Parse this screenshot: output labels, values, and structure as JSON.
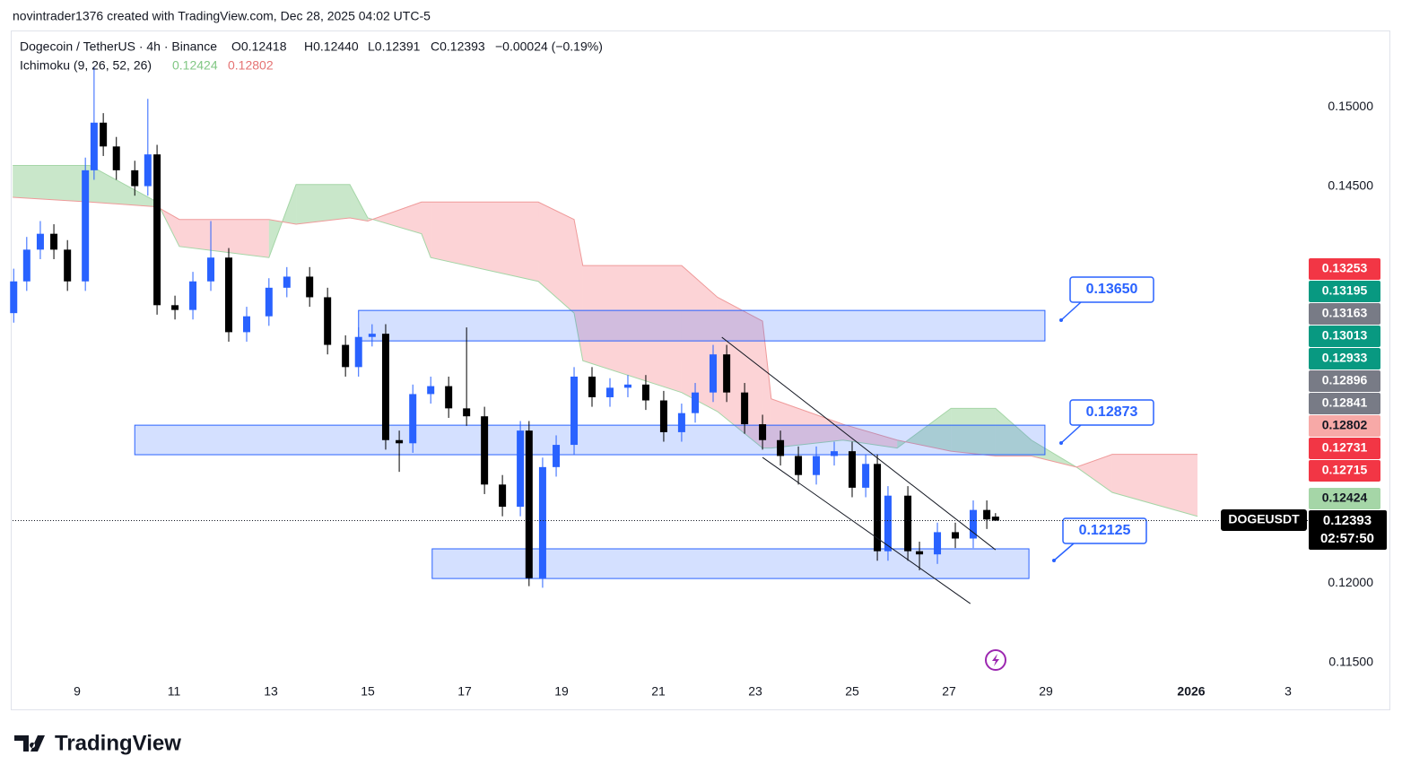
{
  "header": {
    "credit": "novintrader1376 created with TradingView.com, Dec 28, 2025 04:02 UTC-5"
  },
  "legend": {
    "symbol": "Dogecoin / TetherUS · 4h · Binance",
    "open": "O0.12418",
    "high": "H0.12440",
    "low": "L0.12391",
    "close": "C0.12393",
    "change": "−0.00024 (−0.19%)",
    "indicator": "Ichimoku (9, 26, 52, 26)",
    "indicator_a": "0.12424",
    "indicator_b": "0.12802"
  },
  "logo": "TradingView",
  "chart_data": {
    "type": "candlestick",
    "xlim": [
      7.667,
      36.111
    ],
    "ylim": [
      0.11198,
      0.15475
    ],
    "xticks": [
      9,
      11,
      13,
      15,
      17,
      19,
      21,
      23,
      25,
      27,
      29,
      {
        "value": 32,
        "label": "2026"
      },
      {
        "value": 34,
        "label": "3"
      }
    ],
    "yticks": [
      {
        "value": 0.115,
        "label": "0.11500"
      },
      {
        "value": 0.12,
        "label": "0.12000"
      },
      {
        "value": 0.145,
        "label": "0.14500"
      },
      {
        "value": 0.15,
        "label": "0.15000"
      }
    ],
    "up_color": "#2962ff",
    "down_color": "#000000",
    "x": [
      7.69,
      7.96,
      8.24,
      8.52,
      8.8,
      9.17,
      9.35,
      9.54,
      9.81,
      10.19,
      10.46,
      10.65,
      11.02,
      11.39,
      11.76,
      12.13,
      12.5,
      12.96,
      13.33,
      13.8,
      14.17,
      14.54,
      14.81,
      15.09,
      15.37,
      15.65,
      15.93,
      16.3,
      16.67,
      17.04,
      17.41,
      17.78,
      18.15,
      18.33,
      18.61,
      18.89,
      19.26,
      19.63,
      20.0,
      20.37,
      20.74,
      21.11,
      21.48,
      21.76,
      22.13,
      22.41,
      22.78,
      23.15,
      23.52,
      23.89,
      24.26,
      24.63,
      25.0,
      25.28,
      25.52,
      25.74,
      26.15,
      26.39,
      26.76,
      27.13,
      27.5,
      27.78,
      27.96
    ],
    "open": [
      0.137,
      0.139,
      0.141,
      0.142,
      0.141,
      0.139,
      0.146,
      0.149,
      0.1475,
      0.146,
      0.145,
      0.147,
      0.1375,
      0.1372,
      0.139,
      0.1405,
      0.1358,
      0.1368,
      0.1386,
      0.1393,
      0.138,
      0.135,
      0.1336,
      0.1355,
      0.1357,
      0.129,
      0.1288,
      0.1319,
      0.1324,
      0.131,
      0.1305,
      0.1262,
      0.1248,
      0.1296,
      0.1203,
      0.1273,
      0.1287,
      0.133,
      0.1317,
      0.1323,
      0.1325,
      0.1315,
      0.1295,
      0.1307,
      0.132,
      0.1344,
      0.132,
      0.13,
      0.129,
      0.128,
      0.1268,
      0.128,
      0.1283,
      0.126,
      0.1275,
      0.122,
      0.1255,
      0.122,
      0.1218,
      0.1232,
      0.1228,
      0.1246,
      0.12418
    ],
    "high": [
      0.1398,
      0.1418,
      0.1428,
      0.1426,
      0.1416,
      0.1468,
      0.1525,
      0.1496,
      0.1481,
      0.1466,
      0.1505,
      0.1476,
      0.1381,
      0.1396,
      0.1428,
      0.1411,
      0.1374,
      0.1392,
      0.1399,
      0.1399,
      0.1386,
      0.1356,
      0.1361,
      0.1363,
      0.1363,
      0.1296,
      0.1325,
      0.133,
      0.133,
      0.1361,
      0.1311,
      0.1268,
      0.1302,
      0.1302,
      0.1279,
      0.1293,
      0.1336,
      0.1336,
      0.1329,
      0.1331,
      0.1331,
      0.1321,
      0.1313,
      0.1326,
      0.135,
      0.135,
      0.1326,
      0.1306,
      0.1296,
      0.1286,
      0.1286,
      0.1289,
      0.1289,
      0.1281,
      0.1281,
      0.1261,
      0.1261,
      0.1226,
      0.1238,
      0.1238,
      0.1252,
      0.1252,
      0.1244
    ],
    "low": [
      0.1364,
      0.1384,
      0.1404,
      0.1404,
      0.1384,
      0.1384,
      0.1454,
      0.1469,
      0.1454,
      0.1444,
      0.1444,
      0.1369,
      0.1366,
      0.1366,
      0.1384,
      0.1352,
      0.1352,
      0.1362,
      0.138,
      0.1374,
      0.1344,
      0.133,
      0.133,
      0.1349,
      0.1284,
      0.127,
      0.1282,
      0.1313,
      0.1304,
      0.1299,
      0.1256,
      0.1242,
      0.1242,
      0.1198,
      0.1197,
      0.1267,
      0.1281,
      0.1311,
      0.1311,
      0.1317,
      0.1309,
      0.1289,
      0.1289,
      0.1301,
      0.1314,
      0.1314,
      0.1294,
      0.1284,
      0.1274,
      0.1262,
      0.1262,
      0.1274,
      0.1254,
      0.1254,
      0.1214,
      0.1214,
      0.1214,
      0.1208,
      0.1212,
      0.1222,
      0.1222,
      0.1234,
      0.12391
    ],
    "close": [
      0.139,
      0.141,
      0.142,
      0.141,
      0.139,
      0.146,
      0.149,
      0.1475,
      0.146,
      0.145,
      0.147,
      0.1375,
      0.1372,
      0.139,
      0.1405,
      0.1358,
      0.1368,
      0.1386,
      0.1393,
      0.138,
      0.135,
      0.1336,
      0.1355,
      0.1357,
      0.129,
      0.1288,
      0.1319,
      0.1324,
      0.131,
      0.1305,
      0.1262,
      0.1248,
      0.1296,
      0.1203,
      0.1273,
      0.1287,
      0.133,
      0.1317,
      0.1323,
      0.1325,
      0.1315,
      0.1295,
      0.1307,
      0.132,
      0.1344,
      0.132,
      0.13,
      0.129,
      0.128,
      0.1268,
      0.128,
      0.1283,
      0.126,
      0.1275,
      0.122,
      0.1255,
      0.122,
      0.1218,
      0.1232,
      0.1228,
      0.1246,
      0.124,
      0.12393
    ],
    "cloud": {
      "x": [
        7.67,
        9.26,
        10.65,
        11.11,
        12.96,
        13.52,
        14.63,
        15.0,
        16.11,
        16.3,
        18.52,
        19.26,
        19.44,
        21.48,
        22.22,
        23.15,
        23.33,
        24.81,
        25.93,
        27.04,
        27.96,
        28.7,
        29.63,
        30.37,
        32.13
      ],
      "span_a": [
        0.1463,
        0.1463,
        0.144,
        0.1412,
        0.1405,
        0.1451,
        0.1451,
        0.143,
        0.142,
        0.1405,
        0.139,
        0.137,
        0.134,
        0.132,
        0.1308,
        0.1285,
        0.1285,
        0.129,
        0.1285,
        0.131,
        0.131,
        0.129,
        0.1273,
        0.1257,
        0.1242
      ],
      "span_b": [
        0.1443,
        0.144,
        0.1437,
        0.1429,
        0.1429,
        0.1426,
        0.143,
        0.1428,
        0.144,
        0.144,
        0.144,
        0.1429,
        0.14,
        0.14,
        0.138,
        0.1365,
        0.1316,
        0.13,
        0.129,
        0.1283,
        0.128,
        0.128,
        0.1273,
        0.1281,
        0.1281
      ],
      "bull_color": "#4caf50",
      "bear_color": "#f23645"
    },
    "zones": [
      {
        "x": [
          14.81,
          28.98
        ],
        "top": 0.13717,
        "bottom": 0.13525,
        "label": "0.13650"
      },
      {
        "x": [
          10.19,
          28.98
        ],
        "top": 0.12994,
        "bottom": 0.12808,
        "label": "0.12873"
      },
      {
        "x": [
          16.33,
          28.65
        ],
        "top": 0.12215,
        "bottom": 0.12028,
        "label": "0.12125"
      }
    ],
    "trend_lines": [
      {
        "x": [
          22.31,
          27.96
        ],
        "y": [
          0.13548,
          0.12209
        ]
      },
      {
        "x": [
          23.15,
          27.44
        ],
        "y": [
          0.12791,
          0.1187
        ]
      }
    ],
    "price_badges": [
      {
        "value": 0.13253,
        "color": "#f23645"
      },
      {
        "value": 0.13195,
        "color": "#089981"
      },
      {
        "value": 0.13163,
        "color": "#787b86"
      },
      {
        "value": 0.13013,
        "color": "#089981"
      },
      {
        "value": 0.12933,
        "color": "#089981"
      },
      {
        "value": 0.12896,
        "color": "#787b86"
      },
      {
        "value": 0.12841,
        "color": "#787b86"
      },
      {
        "value": 0.12802,
        "color": "#f7a9a7"
      },
      {
        "value": 0.12731,
        "color": "#f23645"
      },
      {
        "value": 0.12715,
        "color": "#f23645"
      },
      {
        "value": 0.12424,
        "color": "#a5d6a7"
      }
    ],
    "last_price": {
      "value": 0.12393,
      "symbol": "DOGEUSDT",
      "countdown": "02:57:50"
    }
  }
}
